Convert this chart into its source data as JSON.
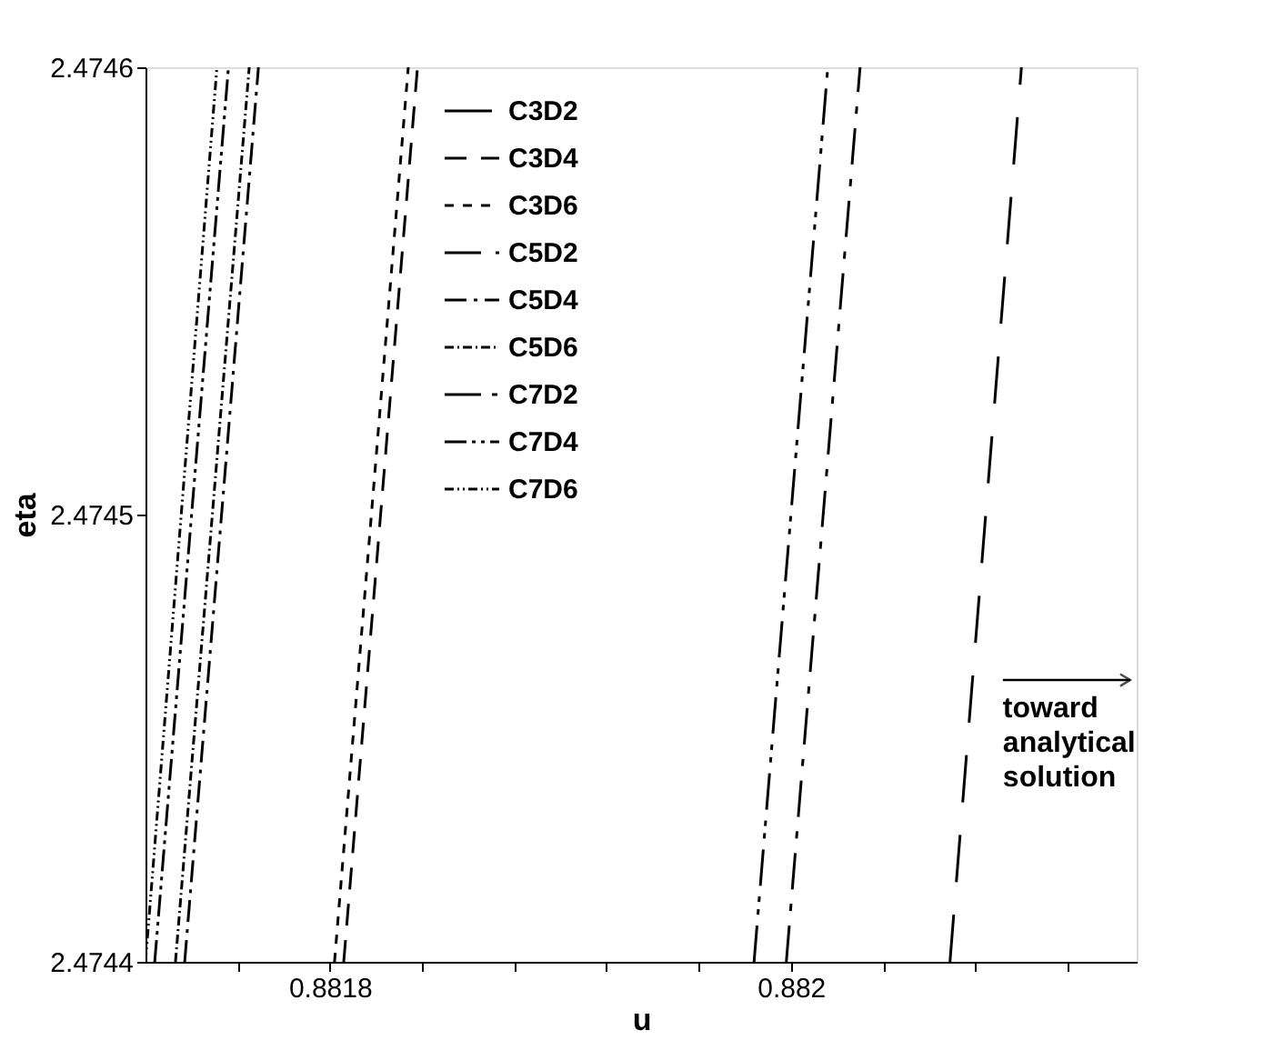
{
  "chart_data": {
    "type": "line",
    "xlabel": "u",
    "ylabel": "eta",
    "xlim": [
      0.88172,
      0.88215
    ],
    "ylim": [
      2.4744,
      2.4746
    ],
    "xticks": [
      {
        "value": 0.88176,
        "label": null
      },
      0.8818,
      {
        "value": 0.88184,
        "label": null
      },
      {
        "value": 0.88188,
        "label": null
      },
      {
        "value": 0.88192,
        "label": null
      },
      {
        "value": 0.88196,
        "label": null
      },
      0.882,
      {
        "value": 0.88204,
        "label": null
      },
      {
        "value": 0.88208,
        "label": null
      },
      {
        "value": 0.88212,
        "label": null
      }
    ],
    "yticks": [
      2.4744,
      2.4745,
      2.4746
    ],
    "grid": false,
    "legend": "top",
    "marker": "none",
    "line_style": "dashed",
    "series": [
      {
        "name": "C3D2",
        "color": "#000000",
        "x": [
          0.882069,
          0.8821
        ],
        "values": [
          2.4744,
          2.4746
        ]
      },
      {
        "name": "C3D4",
        "color": "#000000",
        "x": [
          0.881806,
          0.881838
        ],
        "values": [
          2.4744,
          2.4746
        ]
      },
      {
        "name": "C3D6",
        "color": "#000000",
        "x": [
          0.881802,
          0.881834
        ],
        "values": [
          2.4744,
          2.4746
        ]
      },
      {
        "name": "C5D2",
        "color": "#000000",
        "x": [
          0.881998,
          0.88203
        ],
        "values": [
          2.4744,
          2.4746
        ]
      },
      {
        "name": "C5D4",
        "color": "#000000",
        "x": [
          0.881737,
          0.881769
        ],
        "values": [
          2.4744,
          2.4746
        ]
      },
      {
        "name": "C5D6",
        "color": "#000000",
        "x": [
          0.881733,
          0.881765
        ],
        "values": [
          2.4744,
          2.4746
        ]
      },
      {
        "name": "C7D2",
        "color": "#000000",
        "x": [
          0.881984,
          0.882016
        ],
        "values": [
          2.4744,
          2.4746
        ]
      },
      {
        "name": "C7D4",
        "color": "#000000",
        "x": [
          0.881724,
          0.881756
        ],
        "values": [
          2.4744,
          2.4746
        ]
      },
      {
        "name": "C7D6",
        "color": "#000000",
        "x": [
          0.88172,
          0.881751
        ],
        "values": [
          2.4744,
          2.4746
        ]
      }
    ],
    "annotations": [
      "toward\nanalytical\nsolution"
    ]
  }
}
